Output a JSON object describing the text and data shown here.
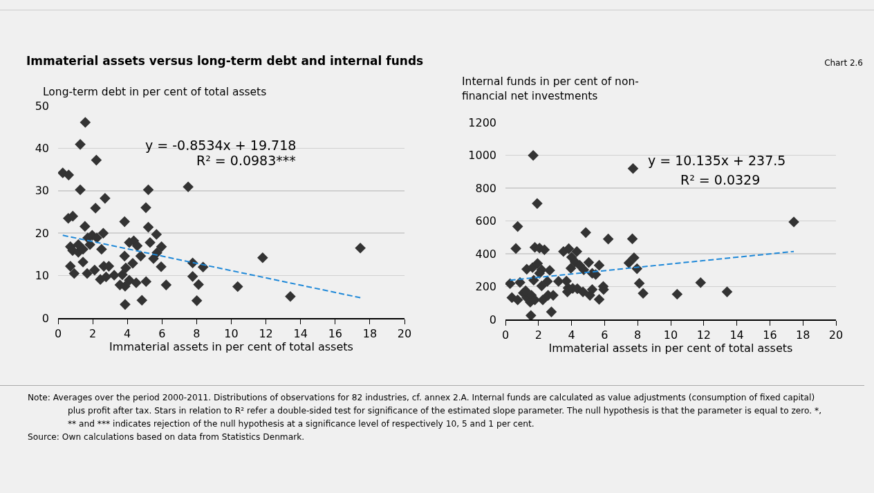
{
  "chart_data": [
    {
      "type": "scatter",
      "title": "Immaterial assets versus long-term debt and internal funds",
      "xlabel": "Immaterial assets in per cent of total assets",
      "ylabel": "Long-term debt in per cent of total assets",
      "annotations": [
        "y = -0.8534x + 19.718",
        "R² = 0.0983***",
        "Chart 2.6",
        "Note: Averages over the period 2000-2011. Distributions of observations for 82 industries, cf. annex 2.A. Internal funds are calculated as value adjustments (consumption of fixed capital) plus profit after tax. Stars in relation to R² refer a double-sided test for significance of the estimated slope parameter. The null hypothesis is that the parameter is equal to zero. *, ** and *** indicates rejection of the null hypothesis at a significance level of respectively 10, 5 and 1 per cent.",
        "Source: Own calculations based on data from Statistics Denmark."
      ],
      "xlim": [
        0,
        20
      ],
      "xticks": [
        0,
        2,
        4,
        6,
        8,
        10,
        12,
        14,
        16,
        18,
        20
      ],
      "ylim": [
        0,
        50
      ],
      "yticks": [
        0,
        10,
        20,
        30,
        40,
        50
      ],
      "grid": "y",
      "series": [
        {
          "color": "#333333",
          "marker": "diamond",
          "x": [
            0.27,
            0.61,
            0.59,
            0.85,
            1.57,
            1.28,
            2.21,
            1.28,
            2.71,
            2.16,
            1.55,
            2.61,
            3.84,
            0.71,
            0.84,
            1.17,
            1.17,
            1.44,
            1.71,
            1.97,
            2.24,
            1.84,
            2.51,
            1.44,
            0.71,
            0.93,
            1.68,
            2.11,
            2.44,
            2.77,
            2.64,
            2.93,
            3.24,
            3.71,
            3.57,
            3.87,
            3.87,
            3.84,
            3.91,
            4.11,
            4.37,
            4.57,
            4.11,
            4.51,
            4.31,
            4.77,
            4.84,
            5.08,
            5.07,
            5.21,
            5.21,
            5.31,
            5.51,
            5.68,
            5.71,
            5.97,
            5.95,
            6.24,
            7.51,
            7.77,
            7.77,
            8.11,
            8.01,
            8.37,
            10.37,
            11.81,
            13.41,
            17.45
          ],
          "values": [
            34.2,
            33.7,
            23.5,
            24.0,
            46.1,
            40.9,
            37.2,
            30.2,
            28.2,
            25.9,
            21.6,
            20.0,
            22.7,
            16.8,
            15.9,
            15.5,
            17.3,
            16.2,
            18.9,
            19.5,
            18.9,
            17.3,
            16.2,
            13.2,
            12.2,
            10.5,
            10.5,
            11.3,
            9.1,
            9.7,
            12.2,
            12.2,
            10.1,
            10.2,
            7.8,
            7.5,
            3.2,
            14.6,
            11.8,
            17.8,
            18.2,
            17.0,
            8.9,
            8.3,
            12.9,
            14.6,
            4.2,
            8.6,
            26.0,
            30.2,
            21.4,
            17.8,
            14.0,
            19.7,
            15.4,
            16.8,
            12.1,
            7.8,
            30.9,
            13.0,
            9.8,
            7.9,
            4.1,
            12.0,
            7.4,
            14.2,
            5.1,
            16.5
          ]
        },
        {
          "type": "line",
          "color": "#1e88d8",
          "line_style": "dashed",
          "marker": "none",
          "x": [
            0.27,
            17.45
          ],
          "values": [
            19.5,
            4.8
          ]
        }
      ]
    },
    {
      "type": "scatter",
      "xlabel": "Immaterial assets in per cent of total assets",
      "ylabel": "Internal funds in per cent of non-financial net investments",
      "annotations": [
        "y = 10.135x + 237.5",
        "R² = 0.0329"
      ],
      "xlim": [
        0,
        20
      ],
      "xticks": [
        0,
        2,
        4,
        6,
        8,
        10,
        12,
        14,
        16,
        18,
        20
      ],
      "ylim": [
        0,
        1200
      ],
      "yticks": [
        0,
        200,
        400,
        600,
        800,
        1000,
        1200
      ],
      "grid": "y",
      "series": [
        {
          "color": "#333333",
          "marker": "diamond",
          "x": [
            0.28,
            0.74,
            0.63,
            1.68,
            1.92,
            1.78,
            2.06,
            2.36,
            1.29,
            1.64,
            1.94,
            2.19,
            2.68,
            2.06,
            2.54,
            2.19,
            1.71,
            0.88,
            0.39,
            0.74,
            1.08,
            1.29,
            1.5,
            1.57,
            1.78,
            1.22,
            2.26,
            2.58,
            2.89,
            2.78,
            1.54,
            3.21,
            3.51,
            3.83,
            3.69,
            3.79,
            3.75,
            4.07,
            4.35,
            4.0,
            3.96,
            4.21,
            4.32,
            4.49,
            4.74,
            4.69,
            4.86,
            5.04,
            5.11,
            5.25,
            5.25,
            5.46,
            5.67,
            5.67,
            5.92,
            5.94,
            6.22,
            7.68,
            7.72,
            7.47,
            7.78,
            7.96,
            8.1,
            8.33,
            10.39,
            11.81,
            13.41,
            17.45
          ],
          "values": [
            218,
            566,
            432,
            999,
            706,
            439,
            435,
            424,
            306,
            316,
            341,
            302,
            299,
            281,
            232,
            204,
            239,
            225,
            133,
            119,
            161,
            133,
            105,
            147,
            119,
            175,
            119,
            147,
            147,
            46,
            24,
            232,
            414,
            431,
            234,
            192,
            168,
            189,
            187,
            379,
            312,
            351,
            414,
            330,
            302,
            168,
            529,
            347,
            147,
            182,
            281,
            274,
            330,
            122,
            201,
            182,
            490,
            491,
            919,
            344,
            376,
            309,
            220,
            159,
            154,
            224,
            168,
            594
          ]
        },
        {
          "type": "line",
          "color": "#1e88d8",
          "line_style": "dashed",
          "marker": "none",
          "x": [
            0.28,
            17.45
          ],
          "values": [
            239,
            414
          ]
        }
      ]
    }
  ]
}
